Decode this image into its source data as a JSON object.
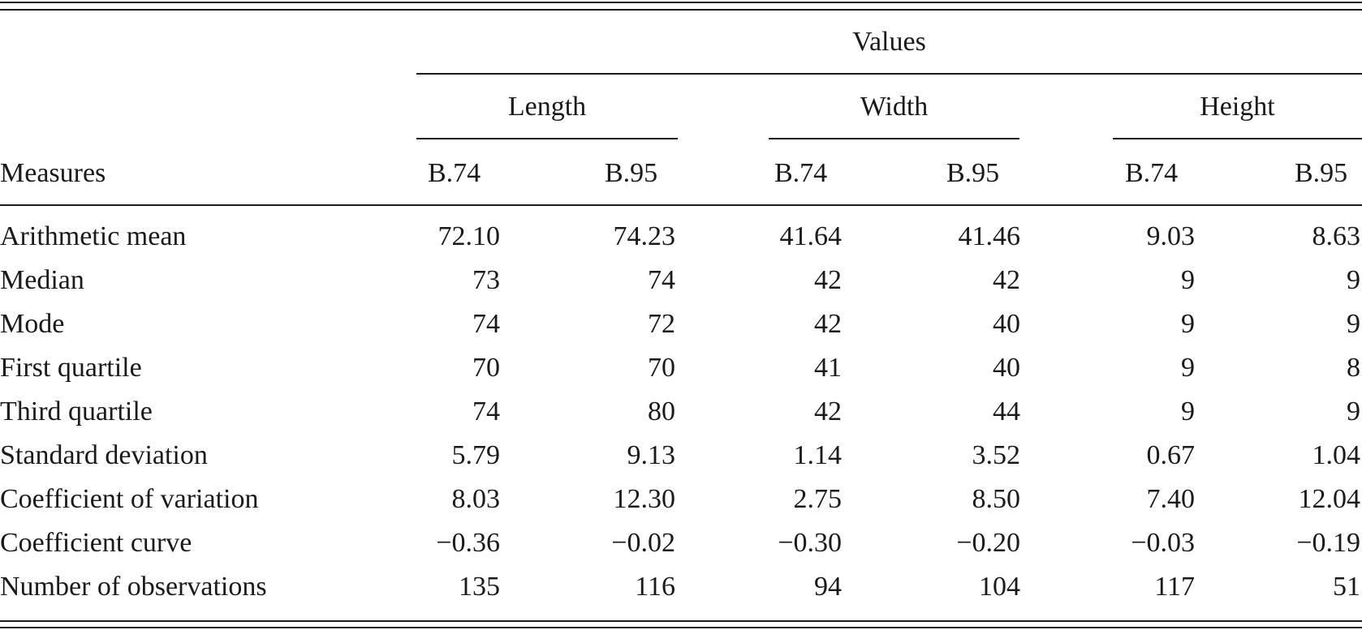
{
  "table": {
    "header": {
      "values_label": "Values",
      "groups": [
        "Length",
        "Width",
        "Height"
      ],
      "measures_label": "Measures",
      "subcolumns": [
        "B.74",
        "B.95",
        "B.74",
        "B.95",
        "B.74",
        "B.95"
      ]
    },
    "rows": [
      {
        "label": "Arithmetic mean",
        "values": [
          "72.10",
          "74.23",
          "41.64",
          "41.46",
          "9.03",
          "8.63"
        ]
      },
      {
        "label": "Median",
        "values": [
          "73",
          "74",
          "42",
          "42",
          "9",
          "9"
        ]
      },
      {
        "label": "Mode",
        "values": [
          "74",
          "72",
          "42",
          "40",
          "9",
          "9"
        ]
      },
      {
        "label": "First quartile",
        "values": [
          "70",
          "70",
          "41",
          "40",
          "9",
          "8"
        ]
      },
      {
        "label": "Third quartile",
        "values": [
          "74",
          "80",
          "42",
          "44",
          "9",
          "9"
        ]
      },
      {
        "label": "Standard deviation",
        "values": [
          "5.79",
          "9.13",
          "1.14",
          "3.52",
          "0.67",
          "1.04"
        ]
      },
      {
        "label": "Coefficient of variation",
        "values": [
          "8.03",
          "12.30",
          "2.75",
          "8.50",
          "7.40",
          "12.04"
        ]
      },
      {
        "label": "Coefficient curve",
        "values": [
          "−0.36",
          "−0.02",
          "−0.30",
          "−0.20",
          "−0.03",
          "−0.19"
        ]
      },
      {
        "label": "Number of observations",
        "values": [
          "135",
          "116",
          "94",
          "104",
          "117",
          "51"
        ]
      }
    ]
  }
}
